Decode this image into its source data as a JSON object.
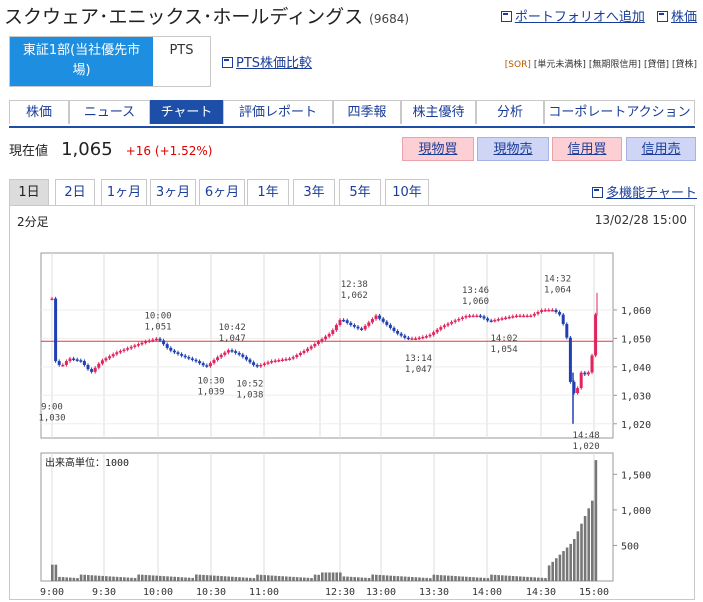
{
  "header": {
    "company": "スクウェア･エニックス･ホールディングス",
    "code": "(9684)",
    "portfolio_link": "ポートフォリオへ追加",
    "stock_link": "株価"
  },
  "market": {
    "main": "東証1部(当社優先市場)",
    "pts": "PTS",
    "pts_compare": "PTS株価比較"
  },
  "badges": [
    "[SOR]",
    "[単元未満株]",
    "[無期限信用]",
    "[貸借]",
    "[貸株]"
  ],
  "nav": [
    "株価",
    "ニュース",
    "チャート",
    "評価レポート",
    "四季報",
    "株主優待",
    "分析",
    "コーポレートアクション"
  ],
  "nav_active": "チャート",
  "price": {
    "label": "現在値",
    "value": "1,065",
    "change": "+16",
    "change_pct": "(+1.52%)"
  },
  "trade_buttons": [
    "現物買",
    "現物売",
    "信用買",
    "信用売"
  ],
  "periods": [
    "1日",
    "2日",
    "1ヶ月",
    "3ヶ月",
    "6ヶ月",
    "1年",
    "3年",
    "5年",
    "10年"
  ],
  "period_active": "1日",
  "multi_chart": "多機能チャート",
  "chart_header": {
    "interval": "2分足",
    "timestamp": "13/02/28 15:00"
  },
  "chart_data": {
    "type": "candlestick",
    "x_ticks": [
      "9:00",
      "9:30",
      "10:00",
      "10:30",
      "11:00",
      "12:30",
      "13:00",
      "13:30",
      "14:00",
      "14:30",
      "15:00"
    ],
    "price_ticks": [
      "1,060",
      "1,050",
      "1,040",
      "1,030",
      "1,020"
    ],
    "ylim": [
      1015,
      1080
    ],
    "reference_price": 1049,
    "annotations": [
      {
        "time": "9:00",
        "price": "1,030"
      },
      {
        "time": "10:00",
        "price": "1,051"
      },
      {
        "time": "10:30",
        "price": "1,039"
      },
      {
        "time": "10:42",
        "price": "1,047"
      },
      {
        "time": "10:52",
        "price": "1,038"
      },
      {
        "time": "12:38",
        "price": "1,062"
      },
      {
        "time": "13:14",
        "price": "1,047"
      },
      {
        "time": "13:46",
        "price": "1,060"
      },
      {
        "time": "14:02",
        "price": "1,054"
      },
      {
        "time": "14:32",
        "price": "1,064"
      },
      {
        "time": "14:48",
        "price": "1,020"
      }
    ],
    "volume_label": "出来高単位：1000",
    "volume_ticks": [
      "1,500",
      "1,000",
      "500"
    ],
    "volume_ylim": [
      0,
      1800
    ]
  }
}
